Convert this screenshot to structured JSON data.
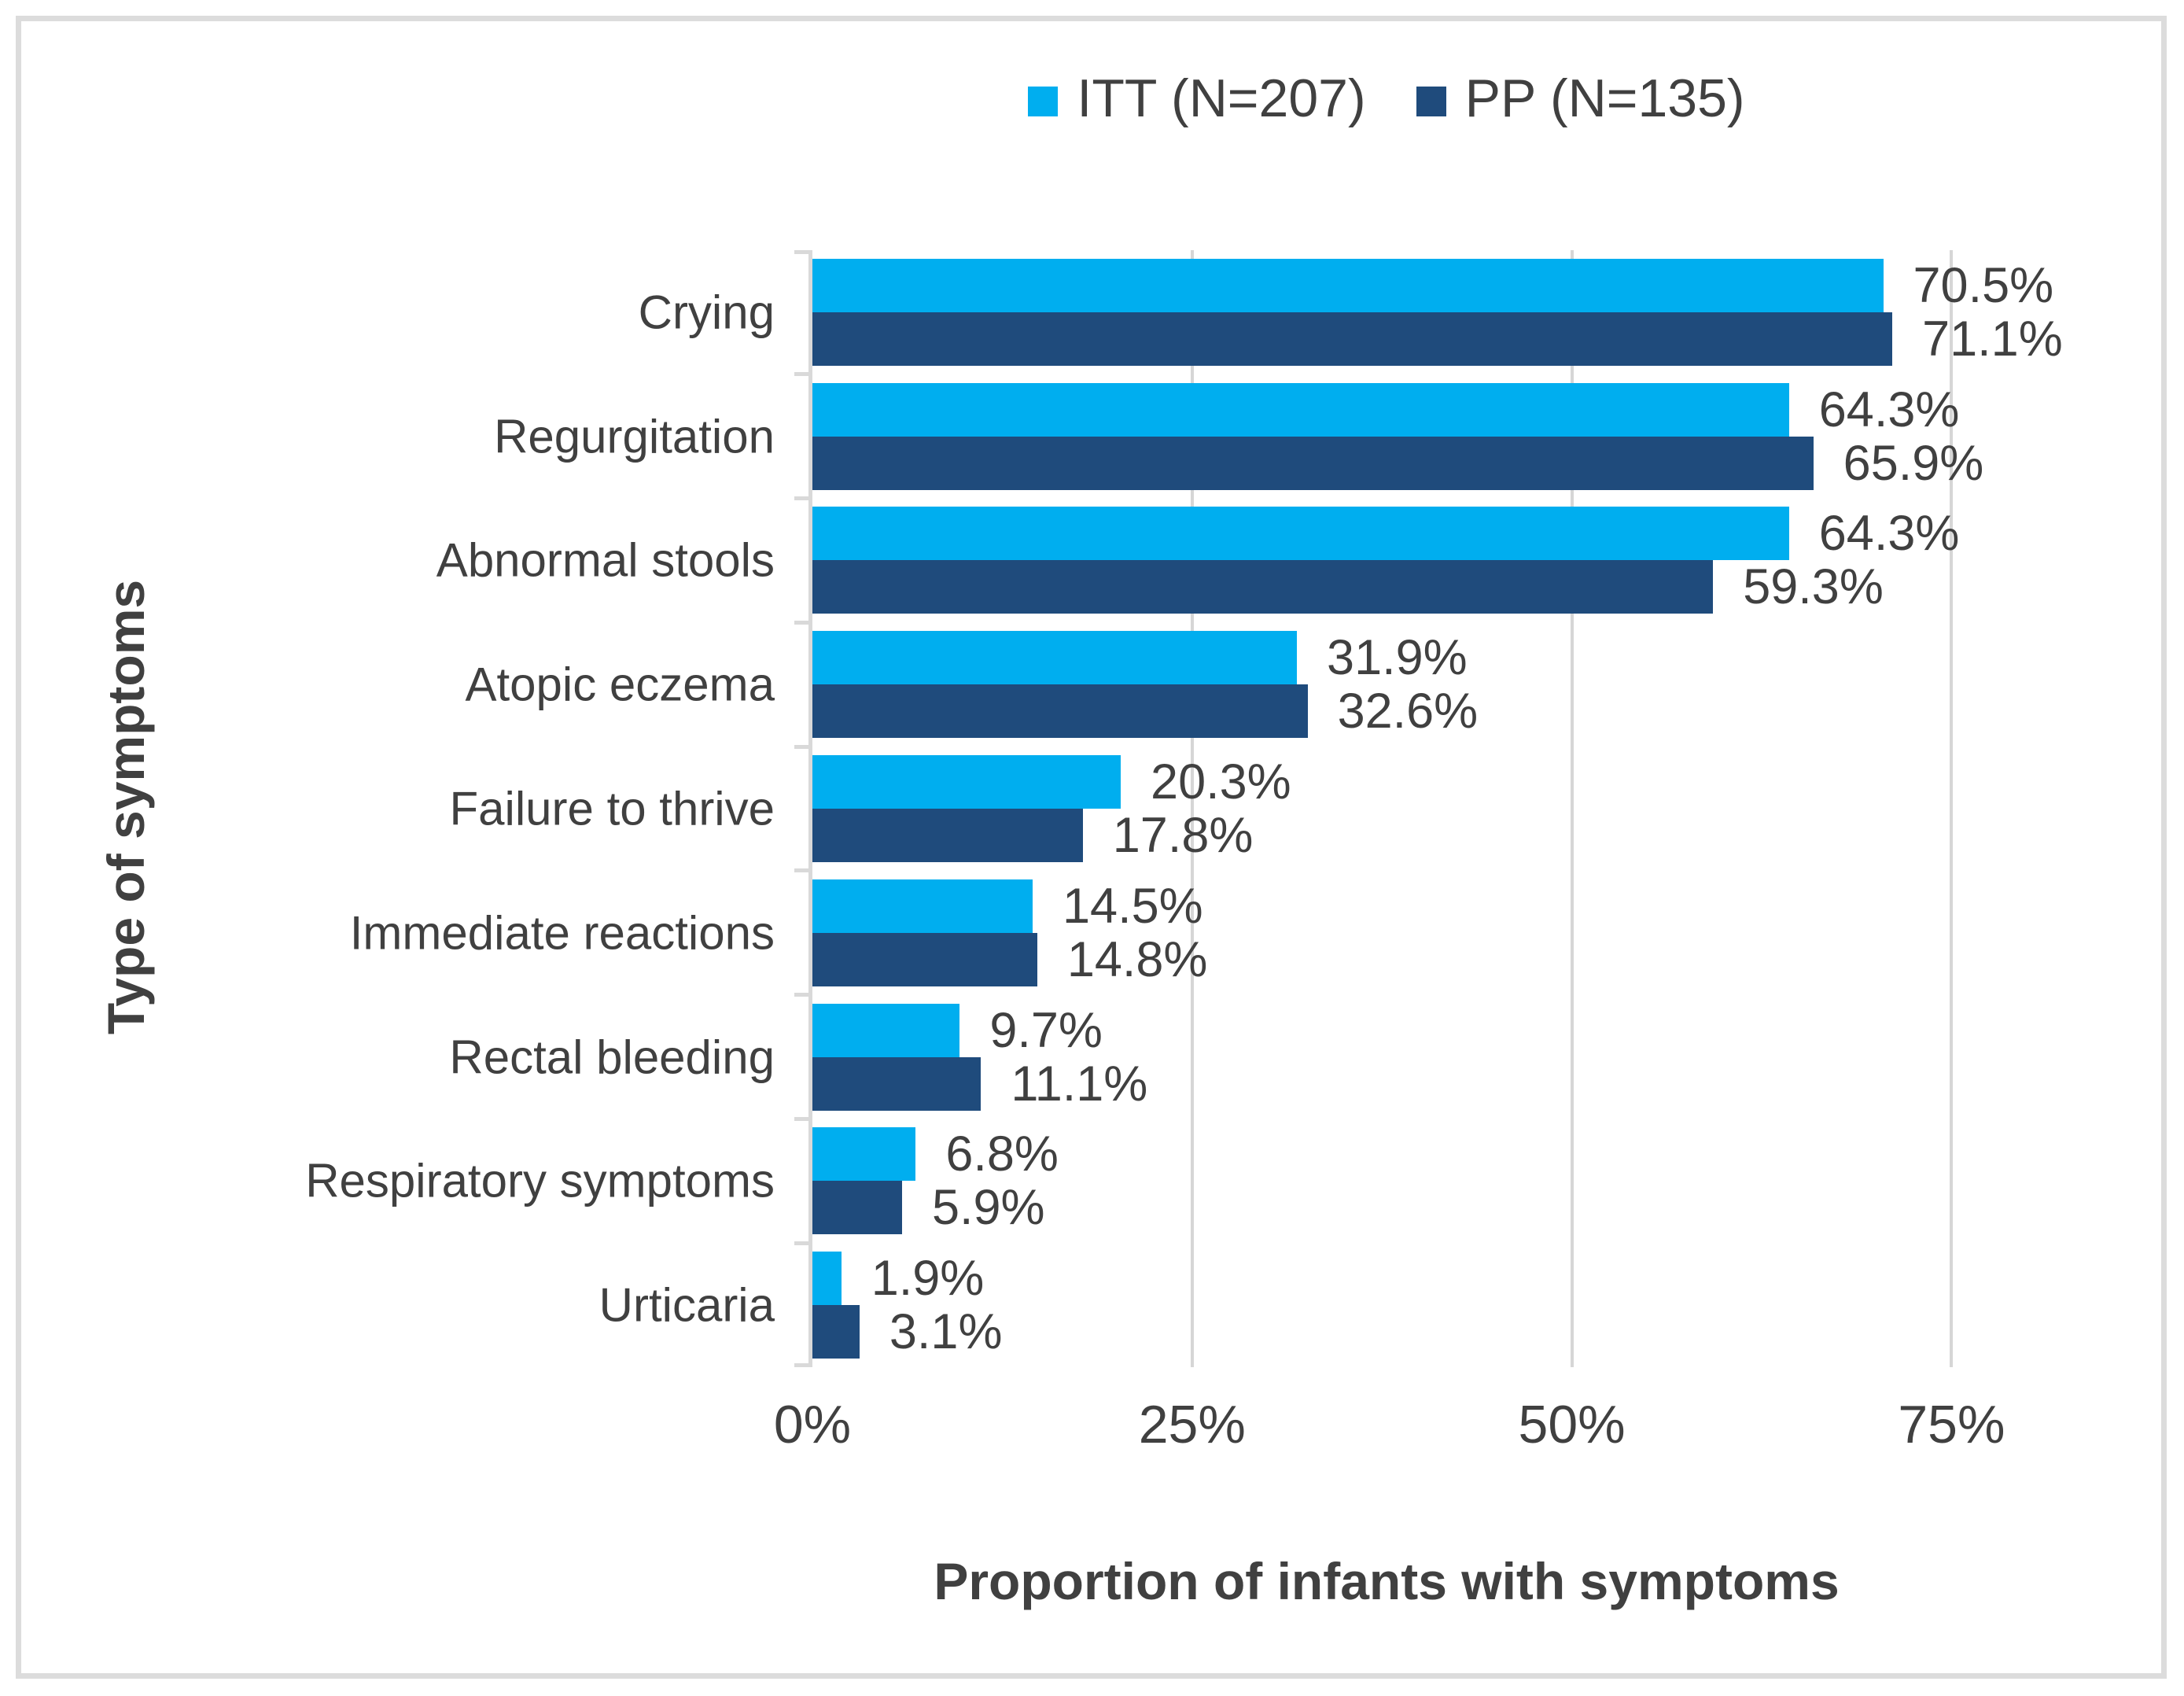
{
  "chart_data": {
    "type": "bar",
    "orientation": "horizontal",
    "xlabel": "Proportion of infants with symptoms",
    "ylabel": "Type of symptoms",
    "categories": [
      "Crying",
      "Regurgitation",
      "Abnormal stools",
      "Atopic eczema",
      "Failure to thrive",
      "Immediate reactions",
      "Rectal bleeding",
      "Respiratory symptoms",
      "Urticaria"
    ],
    "series": [
      {
        "name": "ITT (N=207)",
        "color": "#00AEEF",
        "values": [
          70.5,
          64.3,
          64.3,
          31.9,
          20.3,
          14.5,
          9.7,
          6.8,
          1.9
        ],
        "labels": [
          "70.5%",
          "64.3%",
          "64.3%",
          "31.9%",
          "20.3%",
          "14.5%",
          "9.7%",
          "6.8%",
          "1.9%"
        ]
      },
      {
        "name": "PP (N=135)",
        "color": "#1F4B7C",
        "values": [
          71.1,
          65.9,
          59.3,
          32.6,
          17.8,
          14.8,
          11.1,
          5.9,
          3.1
        ],
        "labels": [
          "71.1%",
          "65.9%",
          "59.3%",
          "32.6%",
          "17.8%",
          "14.8%",
          "11.1%",
          "5.9%",
          "3.1%"
        ]
      }
    ],
    "x_ticks": [
      "0%",
      "25%",
      "50%",
      "75%"
    ],
    "x_tick_values": [
      0,
      25,
      50,
      75
    ],
    "xlim": [
      0,
      75.6
    ],
    "grid": "vertical-gridlines-at-ticks",
    "legend_position": "top-center",
    "colors": {
      "grid": "#D6D6D6",
      "axis": "#D9D9D9",
      "text": "#404040",
      "figure_border": "#DCDCDC",
      "background": "#FFFFFF"
    }
  }
}
